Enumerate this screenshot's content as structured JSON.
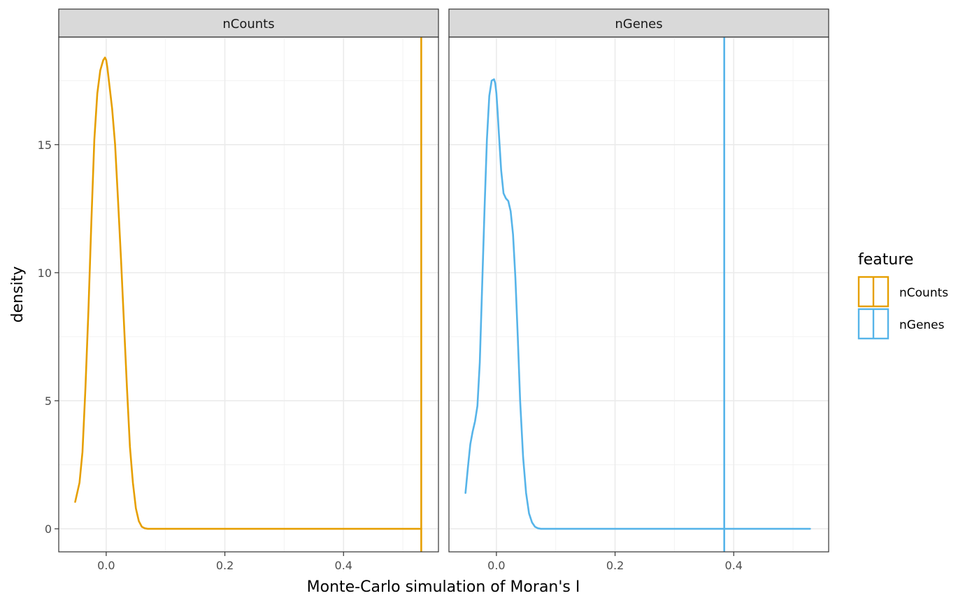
{
  "chart_data": {
    "type": "line",
    "title": "",
    "xlabel": "Monte-Carlo simulation of Moran's I",
    "ylabel": "density",
    "xlim": [
      -0.08,
      0.56
    ],
    "ylim": [
      -0.9,
      19.2
    ],
    "x_ticks": [
      0.0,
      0.2,
      0.4
    ],
    "y_ticks": [
      0,
      5,
      10,
      15
    ],
    "x_tick_labels": [
      "0.0",
      "0.2",
      "0.4"
    ],
    "y_tick_labels": [
      "0",
      "5",
      "10",
      "15"
    ],
    "grid": true,
    "legend": {
      "title": "feature",
      "placement": "right",
      "items": [
        {
          "label": "nCounts",
          "color": "#E69F00"
        },
        {
          "label": "nGenes",
          "color": "#56B4E9"
        }
      ]
    },
    "facets": [
      {
        "strip": "nCounts",
        "color": "#E69F00",
        "observed": 0.531,
        "density": {
          "x": [
            -0.0523,
            -0.045,
            -0.04,
            -0.035,
            -0.03,
            -0.025,
            -0.02,
            -0.015,
            -0.01,
            -0.005,
            -0.002,
            0.0,
            0.002,
            0.005,
            0.01,
            0.015,
            0.02,
            0.025,
            0.03,
            0.035,
            0.04,
            0.045,
            0.05,
            0.055,
            0.06,
            0.065,
            0.07,
            0.08,
            0.1,
            0.2,
            0.3,
            0.4,
            0.5,
            0.531
          ],
          "y": [
            1.05,
            1.8,
            3.0,
            5.5,
            8.5,
            12.0,
            15.2,
            17.0,
            17.9,
            18.3,
            18.4,
            18.3,
            18.0,
            17.4,
            16.4,
            15.0,
            12.8,
            10.5,
            8.0,
            5.5,
            3.2,
            1.8,
            0.8,
            0.3,
            0.08,
            0.02,
            0.0,
            0.0,
            0.0,
            0.0,
            0.0,
            0.0,
            0.0,
            0.0
          ]
        }
      },
      {
        "strip": "nGenes",
        "color": "#56B4E9",
        "observed": 0.384,
        "density": {
          "x": [
            -0.0521,
            -0.048,
            -0.044,
            -0.04,
            -0.036,
            -0.032,
            -0.028,
            -0.024,
            -0.02,
            -0.016,
            -0.012,
            -0.008,
            -0.004,
            -0.002,
            0.0,
            0.002,
            0.004,
            0.008,
            0.012,
            0.016,
            0.02,
            0.024,
            0.028,
            0.032,
            0.036,
            0.04,
            0.045,
            0.05,
            0.055,
            0.06,
            0.065,
            0.07,
            0.075,
            0.08,
            0.1,
            0.2,
            0.3,
            0.4,
            0.5,
            0.5286
          ],
          "y": [
            1.4,
            2.4,
            3.3,
            3.8,
            4.2,
            4.8,
            6.5,
            9.5,
            12.5,
            15.2,
            16.9,
            17.5,
            17.55,
            17.4,
            17.0,
            16.3,
            15.5,
            14.0,
            13.1,
            12.9,
            12.8,
            12.4,
            11.5,
            9.8,
            7.5,
            5.0,
            2.8,
            1.4,
            0.6,
            0.25,
            0.08,
            0.02,
            0.0,
            0.0,
            0.0,
            0.0,
            0.0,
            0.0,
            0.0,
            0.0
          ]
        }
      }
    ]
  }
}
